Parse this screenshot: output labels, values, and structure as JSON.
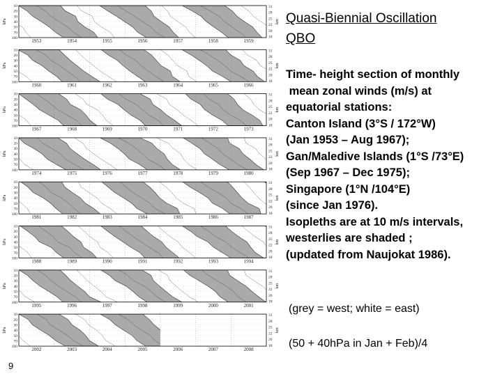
{
  "figure": {
    "strips": [
      {
        "years": [
          "1953",
          "1954",
          "1955",
          "1956",
          "1957",
          "1958",
          "1959"
        ]
      },
      {
        "years": [
          "1960",
          "1961",
          "1962",
          "1963",
          "1964",
          "1965",
          "1966"
        ]
      },
      {
        "years": [
          "1967",
          "1968",
          "1969",
          "1970",
          "1971",
          "1972",
          "1973"
        ]
      },
      {
        "years": [
          "1974",
          "1975",
          "1976",
          "1977",
          "1978",
          "1979",
          "1980"
        ]
      },
      {
        "years": [
          "1981",
          "1982",
          "1983",
          "1984",
          "1985",
          "1986",
          "1987"
        ]
      },
      {
        "years": [
          "1988",
          "1989",
          "1990",
          "1991",
          "1992",
          "1993",
          "1994"
        ]
      },
      {
        "years": [
          "1995",
          "1996",
          "1997",
          "1998",
          "1999",
          "2000",
          "2001"
        ]
      },
      {
        "years": [
          "2002",
          "2003",
          "2004",
          "2005",
          "2006",
          "2007",
          "2008"
        ]
      }
    ],
    "left_ticks": [
      "10",
      "20",
      "30",
      "40",
      "50",
      "70",
      "100"
    ],
    "left_unit": "hPa",
    "right_ticks": [
      "31",
      "28",
      "25",
      "22",
      "20",
      "18"
    ],
    "right_unit": "km"
  },
  "text": {
    "title": "Quasi-Biennial Oscillation",
    "subtitle": "QBO",
    "description": [
      "Time- height section of monthly",
      " mean zonal winds (m/s) at",
      "equatorial stations:",
      "Canton Island (3°S / 172°W)",
      "(Jan 1953 – Aug 1967);",
      "Gan/Maledive Islands (1°S /73°E)",
      "(Sep 1967 – Dec 1975);",
      "Singapore (1°N /104°E)",
      "(since Jan 1976).",
      "Isopleths are at 10 m/s intervals,",
      "westerlies are shaded ;",
      "(updated from Naujokat 1986)."
    ],
    "notes": [
      "(grey = west; white = east)",
      "(50 + 40hPa in Jan + Feb)/4"
    ]
  },
  "page_number": "9"
}
